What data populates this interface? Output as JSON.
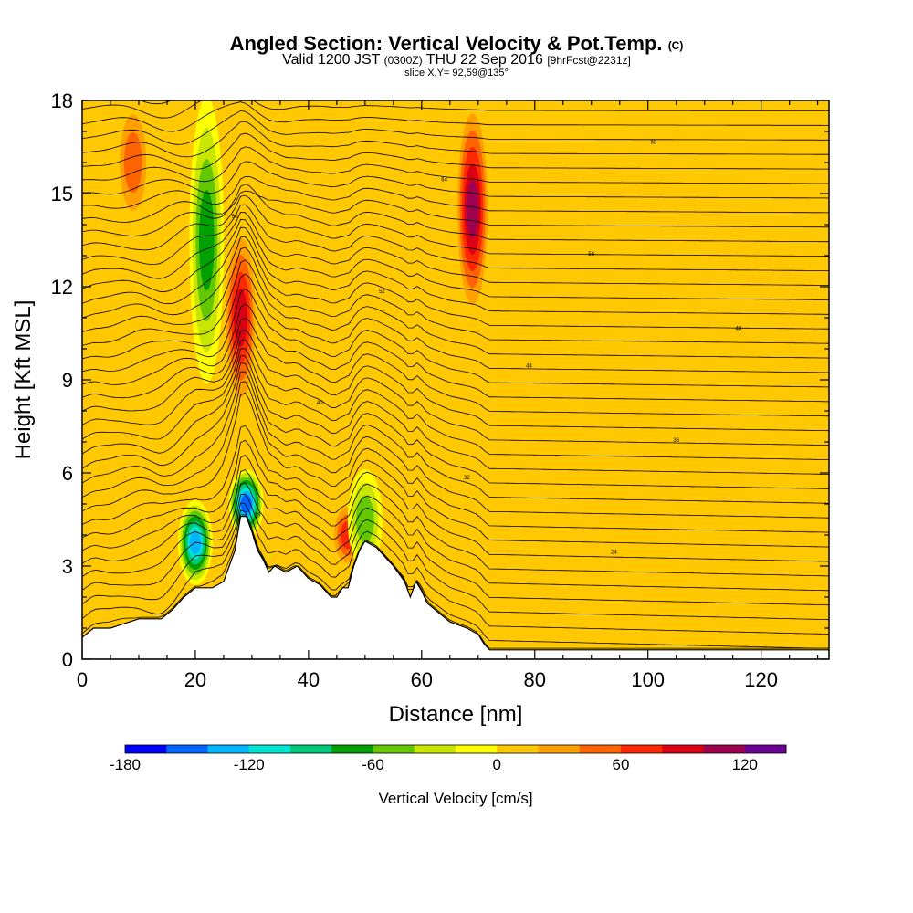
{
  "title": {
    "main": "Angled Section: Vertical Velocity & Pot.Temp.",
    "tag": "(C)",
    "valid_prefix": "Valid 1200 JST",
    "valid_zulu": "(0300Z)",
    "valid_date": "THU 22 Sep 2016",
    "forecast": "[9hrFcst@2231z]",
    "slice": "slice X,Y= 92,59@135°"
  },
  "chart_data": {
    "type": "heatmap",
    "xlabel": "Distance [nm]",
    "ylabel": "Height [Kft MSL]",
    "xlim": [
      0,
      132
    ],
    "ylim": [
      0,
      18
    ],
    "x_ticks": [
      0,
      20,
      40,
      60,
      80,
      100,
      120
    ],
    "y_ticks": [
      0,
      3,
      6,
      9,
      12,
      15,
      18
    ],
    "colorbar": {
      "label": "Vertical Velocity [cm/s]",
      "range": [
        -180,
        140
      ],
      "step": 20,
      "tick_labels": [
        -180,
        -120,
        -60,
        0,
        60,
        120
      ],
      "colors": [
        "#0000ff",
        "#0064ff",
        "#00b4ff",
        "#00e6d2",
        "#00c878",
        "#00a000",
        "#64c800",
        "#c8e600",
        "#ffff00",
        "#ffc800",
        "#ffa000",
        "#ff6400",
        "#ff2800",
        "#dc0014",
        "#a00050",
        "#6a0096"
      ]
    },
    "background_color": "#ffc800",
    "updrafts": [
      {
        "x": 9,
        "z_range": [
          14,
          18
        ],
        "peak": 60
      },
      {
        "x": 28,
        "z_range": [
          8,
          14
        ],
        "peak": 100
      },
      {
        "x": 47,
        "z_range": [
          3,
          5
        ],
        "peak": 80
      },
      {
        "x": 69,
        "z_range": [
          11,
          18
        ],
        "peak": 120
      }
    ],
    "downdrafts": [
      {
        "x": 22,
        "z_range": [
          9,
          18
        ],
        "peak": -80
      },
      {
        "x": 20,
        "z_range": [
          2.5,
          5
        ],
        "peak": -140
      },
      {
        "x": 29,
        "z_range": [
          4,
          6
        ],
        "peak": -160
      },
      {
        "x": 50,
        "z_range": [
          3,
          6
        ],
        "peak": -60
      }
    ],
    "terrain_kft": {
      "x": [
        0,
        2,
        5,
        10,
        14,
        16,
        18,
        20,
        23,
        25,
        26,
        27,
        28,
        29,
        30,
        31,
        32,
        33,
        34,
        36,
        38,
        40,
        42,
        44,
        45,
        46,
        47,
        48,
        49,
        50,
        52,
        55,
        57,
        58,
        59,
        60,
        61,
        63,
        65,
        68,
        70,
        71,
        72,
        132
      ],
      "z": [
        0.7,
        1.0,
        1.0,
        1.3,
        1.3,
        1.6,
        2.0,
        2.3,
        2.3,
        2.5,
        3.0,
        3.5,
        4.6,
        4.6,
        4.1,
        3.5,
        3.2,
        2.8,
        3.0,
        2.8,
        3.0,
        2.6,
        2.4,
        2.0,
        2.0,
        2.3,
        2.3,
        3.0,
        3.5,
        3.8,
        3.6,
        3.0,
        2.5,
        2.0,
        2.5,
        2.2,
        1.8,
        1.5,
        1.2,
        1.0,
        0.8,
        0.5,
        0.3,
        0.3
      ]
    },
    "isentrope_labels": [
      "16",
      "20",
      "24",
      "28",
      "32",
      "36",
      "40",
      "44",
      "48",
      "52",
      "56",
      "60",
      "64",
      "68"
    ]
  }
}
